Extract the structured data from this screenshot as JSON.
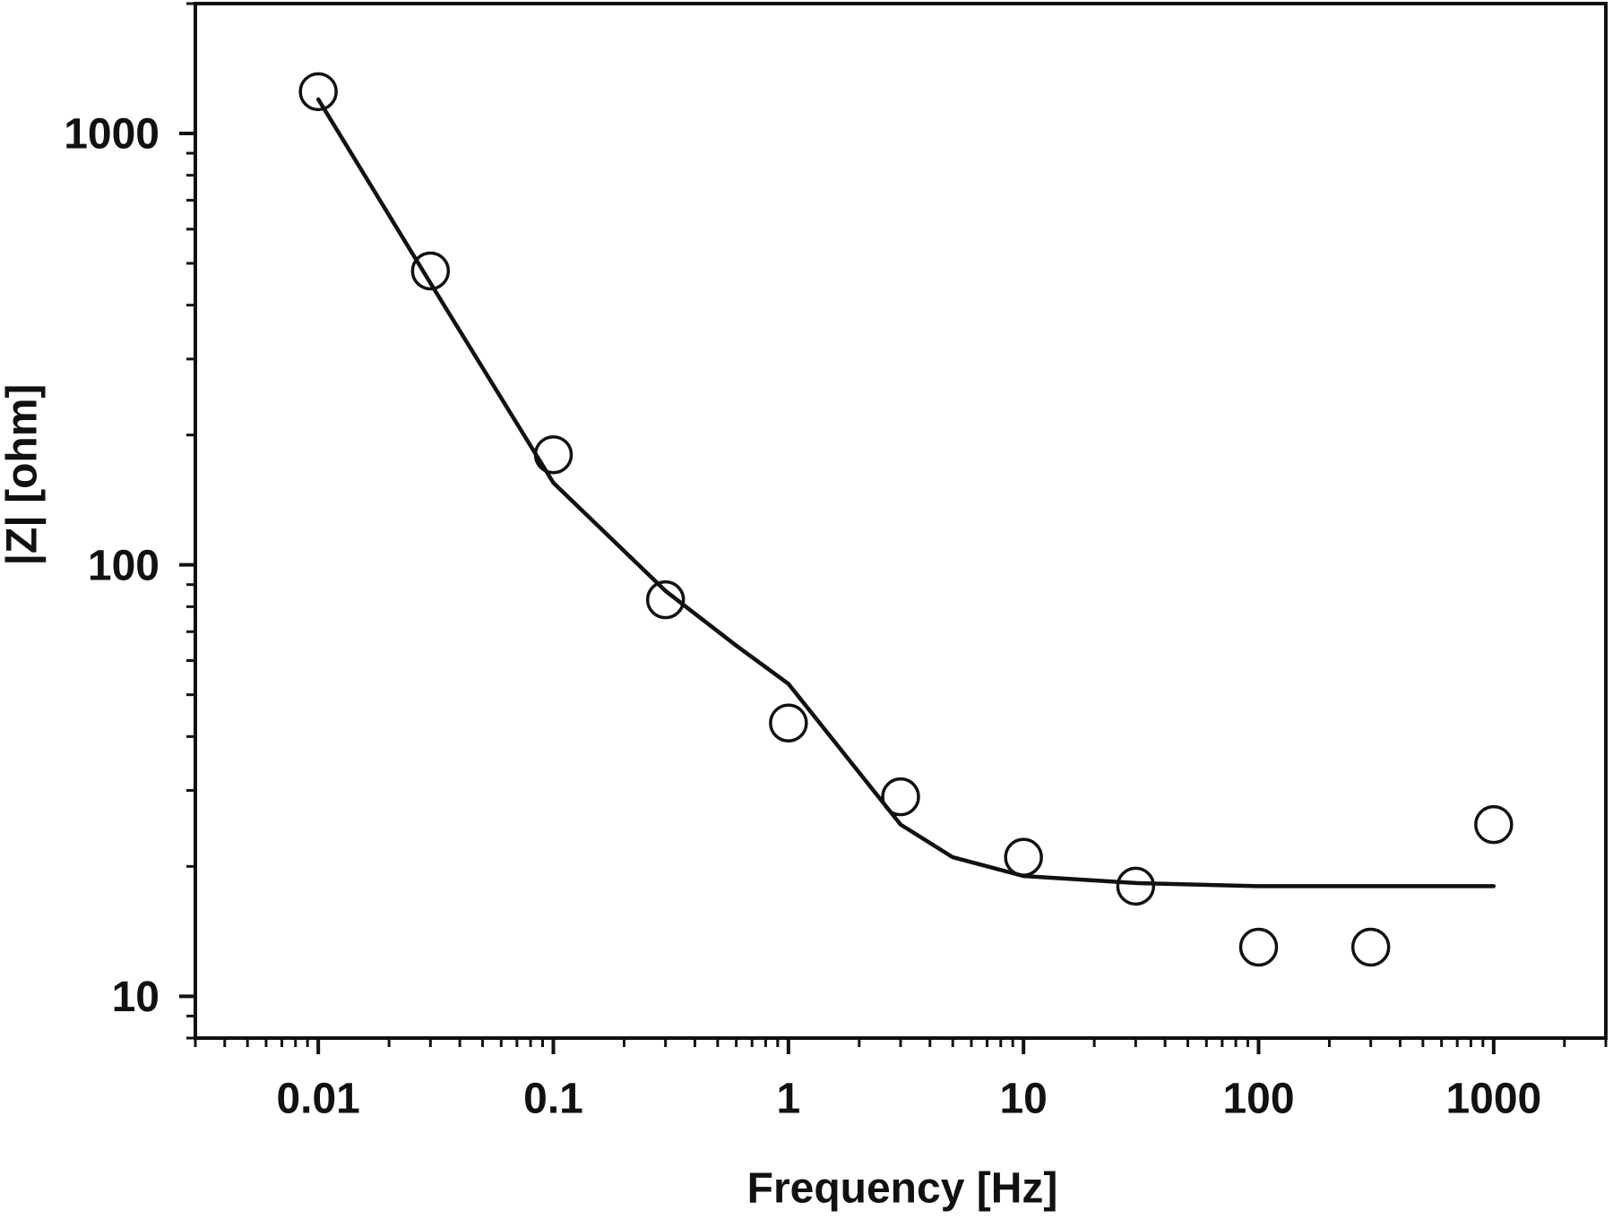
{
  "chart_data": {
    "type": "scatter",
    "x_label": "Frequency [Hz]",
    "y_label": "|Z| [ohm]",
    "x_scale": "log",
    "y_scale": "log",
    "xlim": [
      0.003,
      3000
    ],
    "ylim": [
      8,
      2000
    ],
    "xticks": [
      0.01,
      0.1,
      1,
      10,
      100,
      1000
    ],
    "yticks": [
      10,
      100,
      1000
    ],
    "minor_ticks": true,
    "grid": false,
    "series": [
      {
        "style": "markers",
        "color": "#111111",
        "x": [
          0.01,
          0.03,
          0.1,
          0.3,
          1,
          3,
          10,
          30,
          100,
          300,
          1000
        ],
        "values": [
          1250,
          480,
          180,
          83,
          43,
          29,
          21,
          18,
          13,
          13,
          25
        ]
      },
      {
        "style": "line",
        "color": "#111111",
        "x": [
          0.01,
          0.03,
          0.1,
          0.3,
          0.6,
          1,
          2,
          3,
          5,
          10,
          30,
          100,
          1000
        ],
        "values": [
          1200,
          450,
          155,
          87,
          65,
          53,
          33,
          25,
          21,
          19,
          18.3,
          18,
          18
        ]
      }
    ]
  }
}
